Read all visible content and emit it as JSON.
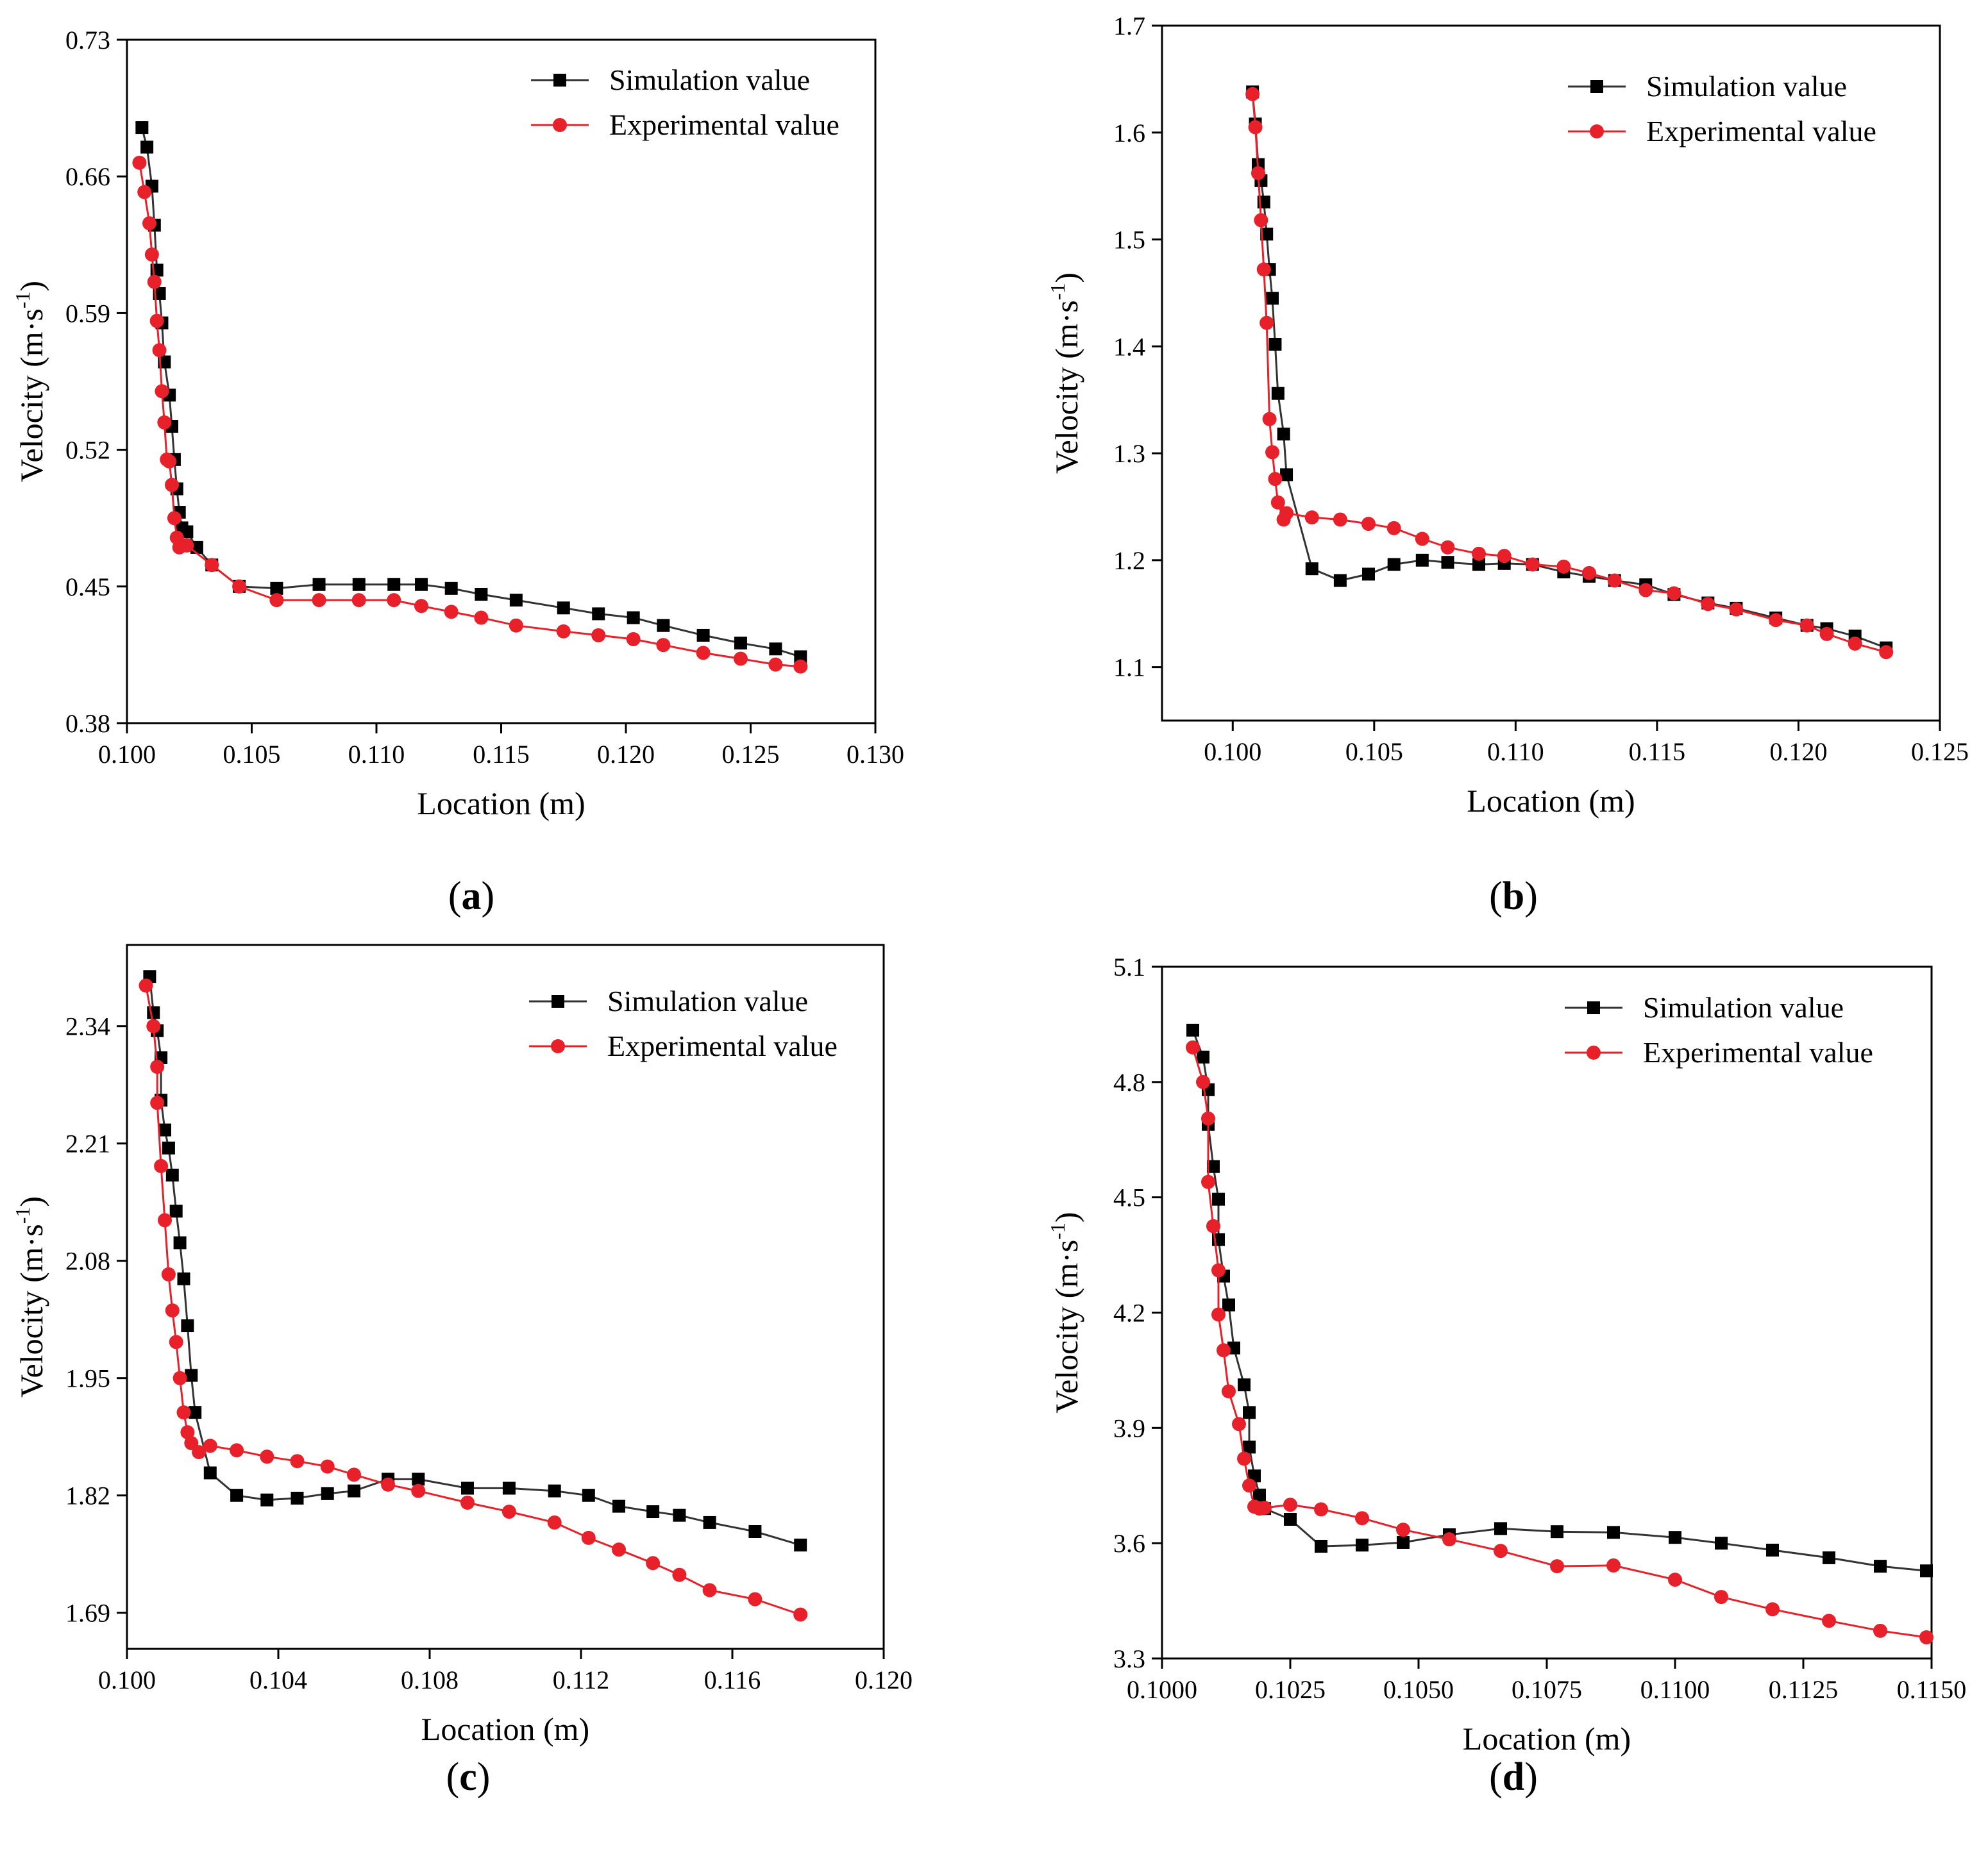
{
  "figure": {
    "series_names": [
      "Simulation value",
      "Experimental value"
    ],
    "series_colors": {
      "simulation": "#000000",
      "experimental": "#e8202a"
    },
    "marker_shapes": {
      "simulation": "square",
      "experimental": "circle"
    }
  },
  "chart_data": [
    {
      "type": "line",
      "panel": "a",
      "panel_label_open": "(",
      "panel_label_letter": "a",
      "panel_label_close": ")",
      "xlabel": "Location (m)",
      "ylabel_main": "Velocity (m·s",
      "ylabel_sup": "-1",
      "ylabel_close": ")",
      "xlim": [
        0.1,
        0.13
      ],
      "ylim": [
        0.38,
        0.73
      ],
      "xticks": [
        0.1,
        0.105,
        0.11,
        0.115,
        0.12,
        0.125,
        0.13
      ],
      "xtick_labels": [
        "0.100",
        "0.105",
        "0.110",
        "0.115",
        "0.120",
        "0.125",
        "0.130"
      ],
      "yticks": [
        0.38,
        0.45,
        0.52,
        0.59,
        0.66,
        0.73
      ],
      "ytick_labels": [
        "0.38",
        "0.45",
        "0.52",
        "0.59",
        "0.66",
        "0.73"
      ],
      "legend": "top-right",
      "series": [
        {
          "name": "Simulation value",
          "x": [
            0.1006,
            0.1008,
            0.101,
            0.1011,
            0.1012,
            0.1013,
            0.1014,
            0.1015,
            0.1017,
            0.1018,
            0.1019,
            0.102,
            0.1021,
            0.1022,
            0.1024,
            0.1028,
            0.1034,
            0.1045,
            0.106,
            0.1077,
            0.1093,
            0.1107,
            0.1118,
            0.113,
            0.1142,
            0.1156,
            0.1175,
            0.1189,
            0.1203,
            0.1215,
            0.1231,
            0.1246,
            0.126,
            0.127
          ],
          "y": [
            0.685,
            0.675,
            0.655,
            0.635,
            0.612,
            0.6,
            0.585,
            0.565,
            0.548,
            0.532,
            0.515,
            0.5,
            0.488,
            0.48,
            0.478,
            0.47,
            0.461,
            0.45,
            0.449,
            0.451,
            0.451,
            0.451,
            0.451,
            0.449,
            0.446,
            0.443,
            0.439,
            0.436,
            0.434,
            0.43,
            0.425,
            0.421,
            0.418,
            0.414
          ]
        },
        {
          "name": "Experimental value",
          "x": [
            0.1005,
            0.1007,
            0.1009,
            0.101,
            0.1011,
            0.1012,
            0.1013,
            0.1014,
            0.1015,
            0.1016,
            0.1017,
            0.1018,
            0.1019,
            0.102,
            0.1021,
            0.1024,
            0.1034,
            0.1045,
            0.106,
            0.1077,
            0.1093,
            0.1107,
            0.1118,
            0.113,
            0.1142,
            0.1156,
            0.1175,
            0.1189,
            0.1203,
            0.1215,
            0.1231,
            0.1246,
            0.126,
            0.127
          ],
          "y": [
            0.667,
            0.652,
            0.636,
            0.62,
            0.606,
            0.586,
            0.571,
            0.55,
            0.534,
            0.515,
            0.514,
            0.502,
            0.485,
            0.475,
            0.47,
            0.471,
            0.461,
            0.45,
            0.443,
            0.443,
            0.443,
            0.443,
            0.44,
            0.437,
            0.434,
            0.43,
            0.427,
            0.425,
            0.423,
            0.42,
            0.416,
            0.413,
            0.41,
            0.409
          ]
        }
      ]
    },
    {
      "type": "line",
      "panel": "b",
      "panel_label_open": "(",
      "panel_label_letter": "b",
      "panel_label_close": ")",
      "xlabel": "Location (m)",
      "ylabel_main": "Velocity (m·s",
      "ylabel_sup": "-1",
      "ylabel_close": ")",
      "xlim": [
        0.0975,
        0.125
      ],
      "ylim": [
        1.05,
        1.7
      ],
      "xticks": [
        0.1,
        0.105,
        0.11,
        0.115,
        0.12,
        0.125
      ],
      "xtick_labels": [
        "0.100",
        "0.105",
        "0.110",
        "0.115",
        "0.120",
        "0.125"
      ],
      "yticks": [
        1.1,
        1.2,
        1.3,
        1.4,
        1.5,
        1.6,
        1.7
      ],
      "ytick_labels": [
        "1.1",
        "1.2",
        "1.3",
        "1.4",
        "1.5",
        "1.6",
        "1.7"
      ],
      "legend": "top-right",
      "series": [
        {
          "name": "Simulation value",
          "x": [
            0.1007,
            0.1008,
            0.1009,
            0.101,
            0.1011,
            0.1012,
            0.1013,
            0.1014,
            0.1015,
            0.1016,
            0.1018,
            0.1019,
            0.1028,
            0.1038,
            0.1048,
            0.1057,
            0.1067,
            0.1076,
            0.1087,
            0.1096,
            0.1106,
            0.1117,
            0.1126,
            0.1135,
            0.1146,
            0.1156,
            0.1168,
            0.1178,
            0.1192,
            0.1203,
            0.121,
            0.122,
            0.1231
          ],
          "y": [
            1.638,
            1.608,
            1.57,
            1.555,
            1.535,
            1.505,
            1.472,
            1.445,
            1.402,
            1.356,
            1.318,
            1.28,
            1.192,
            1.181,
            1.187,
            1.196,
            1.2,
            1.198,
            1.196,
            1.197,
            1.196,
            1.189,
            1.185,
            1.181,
            1.177,
            1.168,
            1.16,
            1.155,
            1.146,
            1.139,
            1.136,
            1.129,
            1.118
          ]
        },
        {
          "name": "Experimental value",
          "x": [
            0.1007,
            0.1008,
            0.1009,
            0.101,
            0.1011,
            0.1012,
            0.1013,
            0.1014,
            0.1015,
            0.1016,
            0.1018,
            0.1019,
            0.1028,
            0.1038,
            0.1048,
            0.1057,
            0.1067,
            0.1076,
            0.1087,
            0.1096,
            0.1106,
            0.1117,
            0.1126,
            0.1135,
            0.1146,
            0.1156,
            0.1168,
            0.1178,
            0.1192,
            0.1203,
            0.121,
            0.122,
            0.1231
          ],
          "y": [
            1.636,
            1.605,
            1.562,
            1.518,
            1.472,
            1.422,
            1.332,
            1.301,
            1.276,
            1.254,
            1.238,
            1.244,
            1.24,
            1.238,
            1.234,
            1.23,
            1.22,
            1.212,
            1.206,
            1.204,
            1.196,
            1.194,
            1.188,
            1.181,
            1.172,
            1.169,
            1.159,
            1.154,
            1.144,
            1.139,
            1.131,
            1.122,
            1.114
          ]
        }
      ]
    },
    {
      "type": "line",
      "panel": "c",
      "panel_label_open": "(",
      "panel_label_letter": "c",
      "panel_label_close": ")",
      "xlabel": "Location (m)",
      "ylabel_main": "Velocity (m·s",
      "ylabel_sup": "-1",
      "ylabel_close": ")",
      "xlim": [
        0.1,
        0.12
      ],
      "ylim": [
        1.65,
        2.43
      ],
      "xticks": [
        0.1,
        0.104,
        0.108,
        0.112,
        0.116,
        0.12
      ],
      "xtick_labels": [
        "0.100",
        "0.104",
        "0.108",
        "0.112",
        "0.116",
        "0.120"
      ],
      "yticks": [
        1.69,
        1.82,
        1.95,
        2.08,
        2.21,
        2.34
      ],
      "ytick_labels": [
        "1.69",
        "1.82",
        "1.95",
        "2.08",
        "2.21",
        "2.34"
      ],
      "legend": "top-right",
      "series": [
        {
          "name": "Simulation value",
          "x": [
            0.1006,
            0.1007,
            0.1008,
            0.1009,
            0.1009,
            0.101,
            0.1011,
            0.1012,
            0.1013,
            0.1014,
            0.1015,
            0.1016,
            0.1017,
            0.1018,
            0.1022,
            0.1029,
            0.1037,
            0.1045,
            0.1053,
            0.106,
            0.1069,
            0.1077,
            0.109,
            0.1101,
            0.1113,
            0.1122,
            0.113,
            0.1139,
            0.1146,
            0.1154,
            0.1166,
            0.1178
          ],
          "y": [
            2.395,
            2.355,
            2.335,
            2.305,
            2.258,
            2.225,
            2.205,
            2.175,
            2.135,
            2.1,
            2.06,
            2.008,
            1.953,
            1.912,
            1.845,
            1.82,
            1.815,
            1.817,
            1.822,
            1.825,
            1.838,
            1.838,
            1.828,
            1.828,
            1.825,
            1.82,
            1.808,
            1.802,
            1.798,
            1.79,
            1.78,
            1.765
          ]
        },
        {
          "name": "Experimental value",
          "x": [
            0.1005,
            0.1007,
            0.1008,
            0.1008,
            0.1009,
            0.101,
            0.1011,
            0.1012,
            0.1013,
            0.1014,
            0.1015,
            0.1016,
            0.1017,
            0.1019,
            0.1022,
            0.1029,
            0.1037,
            0.1045,
            0.1053,
            0.106,
            0.1069,
            0.1077,
            0.109,
            0.1101,
            0.1113,
            0.1122,
            0.113,
            0.1139,
            0.1146,
            0.1154,
            0.1166,
            0.1178
          ],
          "y": [
            2.385,
            2.34,
            2.295,
            2.255,
            2.185,
            2.125,
            2.065,
            2.025,
            1.99,
            1.95,
            1.912,
            1.89,
            1.878,
            1.868,
            1.875,
            1.87,
            1.863,
            1.858,
            1.852,
            1.843,
            1.832,
            1.825,
            1.812,
            1.802,
            1.79,
            1.773,
            1.76,
            1.745,
            1.732,
            1.715,
            1.705,
            1.688
          ]
        }
      ]
    },
    {
      "type": "line",
      "panel": "d",
      "panel_label_open": "(",
      "panel_label_letter": "d",
      "panel_label_close": ")",
      "xlabel": "Location (m)",
      "ylabel_main": "Velocity (m·s",
      "ylabel_sup": "-1",
      "ylabel_close": ")",
      "xlim": [
        0.1,
        0.115
      ],
      "ylim": [
        3.3,
        5.1
      ],
      "xticks": [
        0.1,
        0.1025,
        0.105,
        0.1075,
        0.11,
        0.1125,
        0.115
      ],
      "xtick_labels": [
        "0.1000",
        "0.1025",
        "0.1050",
        "0.1075",
        "0.1100",
        "0.1125",
        "0.1150"
      ],
      "yticks": [
        3.3,
        3.6,
        3.9,
        4.2,
        4.5,
        4.8,
        5.1
      ],
      "ytick_labels": [
        "3.3",
        "3.6",
        "3.9",
        "4.2",
        "4.5",
        "4.8",
        "5.1"
      ],
      "legend": "top-right",
      "series": [
        {
          "name": "Simulation value",
          "x": [
            0.1006,
            0.1008,
            0.1009,
            0.1009,
            0.101,
            0.1011,
            0.1011,
            0.1012,
            0.1013,
            0.1014,
            0.1016,
            0.1017,
            0.1017,
            0.1018,
            0.1019,
            0.102,
            0.1025,
            0.1031,
            0.1039,
            0.1047,
            0.1056,
            0.1066,
            0.1077,
            0.1088,
            0.11,
            0.1109,
            0.1119,
            0.113,
            0.114,
            0.1149
          ],
          "y": [
            4.935,
            4.865,
            4.78,
            4.69,
            4.58,
            4.495,
            4.39,
            4.295,
            4.22,
            4.108,
            4.012,
            3.94,
            3.85,
            3.775,
            3.725,
            3.69,
            3.662,
            3.592,
            3.595,
            3.602,
            3.622,
            3.638,
            3.63,
            3.628,
            3.615,
            3.6,
            3.582,
            3.562,
            3.54,
            3.528
          ]
        },
        {
          "name": "Experimental value",
          "x": [
            0.1006,
            0.1008,
            0.1009,
            0.1009,
            0.101,
            0.1011,
            0.1011,
            0.1012,
            0.1013,
            0.1015,
            0.1016,
            0.1017,
            0.1018,
            0.1019,
            0.102,
            0.1025,
            0.1031,
            0.1039,
            0.1047,
            0.1056,
            0.1066,
            0.1077,
            0.1088,
            0.11,
            0.1109,
            0.1119,
            0.113,
            0.114,
            0.1149
          ],
          "y": [
            4.89,
            4.8,
            4.705,
            4.54,
            4.425,
            4.31,
            4.195,
            4.102,
            3.995,
            3.91,
            3.82,
            3.75,
            3.695,
            3.69,
            3.692,
            3.7,
            3.688,
            3.665,
            3.635,
            3.61,
            3.58,
            3.54,
            3.542,
            3.505,
            3.46,
            3.428,
            3.398,
            3.372,
            3.355
          ]
        }
      ]
    }
  ]
}
